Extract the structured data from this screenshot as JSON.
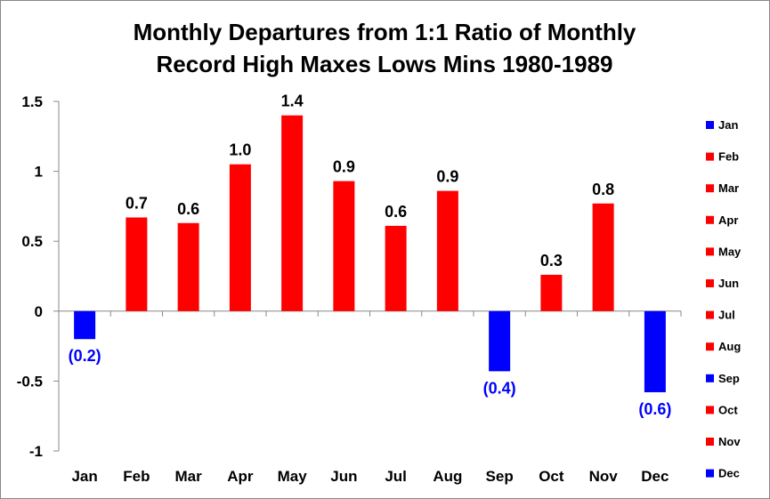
{
  "chart_data": {
    "type": "bar",
    "title": "Monthly Departures from 1:1 Ratio of Monthly Record High Maxes Lows Mins 1980-1989",
    "title_lines": [
      "Monthly Departures from 1:1 Ratio of Monthly",
      "Record High Maxes Lows Mins 1980-1989"
    ],
    "categories": [
      "Jan",
      "Feb",
      "Mar",
      "Apr",
      "May",
      "Jun",
      "Jul",
      "Aug",
      "Sep",
      "Oct",
      "Nov",
      "Dec"
    ],
    "values": [
      -0.2,
      0.67,
      0.63,
      1.05,
      1.4,
      0.93,
      0.61,
      0.86,
      -0.43,
      0.26,
      0.77,
      -0.58
    ],
    "data_labels": [
      "(0.2)",
      "0.7",
      "0.6",
      "1.0",
      "1.4",
      "0.9",
      "0.6",
      "0.9",
      "(0.4)",
      "0.3",
      "0.8",
      "(0.6)"
    ],
    "yticks": [
      1.5,
      1,
      0.5,
      0,
      -0.5,
      -1
    ],
    "ytick_labels": [
      "1.5",
      "1",
      "0.5",
      "0",
      "-0.5",
      "-1"
    ],
    "ylim": [
      -1,
      1.5
    ],
    "xlabel": "",
    "ylabel": "",
    "grid": false,
    "legend": {
      "placement": "right",
      "entries": [
        "Jan",
        "Feb",
        "Mar",
        "Apr",
        "May",
        "Jun",
        "Jul",
        "Aug",
        "Sep",
        "Oct",
        "Nov",
        "Dec"
      ]
    },
    "colors": {
      "positive": "#ff0000",
      "negative": "#0000ff",
      "negative_label": "#0000ff",
      "positive_label": "#000000",
      "axis": "#888888"
    }
  }
}
